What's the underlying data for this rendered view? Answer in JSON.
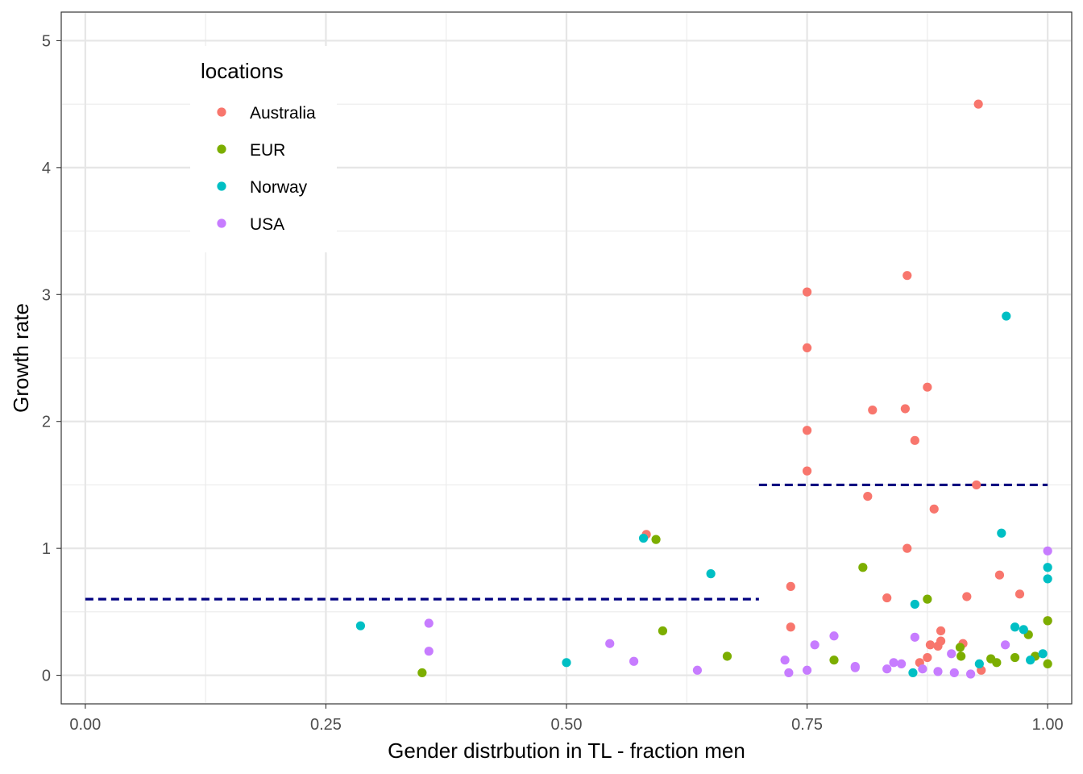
{
  "chart_data": {
    "type": "scatter",
    "xlabel": "Gender distrbution in TL - fraction men",
    "ylabel": "Growth rate",
    "xlim": [
      -0.025,
      1.025
    ],
    "ylim": [
      -0.225,
      5.225
    ],
    "xticks": [
      0.0,
      0.25,
      0.5,
      0.75,
      1.0
    ],
    "xtick_labels": [
      "0.00",
      "0.25",
      "0.50",
      "0.75",
      "1.00"
    ],
    "yticks": [
      0,
      1,
      2,
      3,
      4,
      5
    ],
    "ytick_labels": [
      "0",
      "1",
      "2",
      "3",
      "4",
      "5"
    ],
    "grid": true,
    "legend": {
      "title": "locations",
      "placement": "top-left"
    },
    "reference_lines": [
      {
        "x": [
          0.0,
          0.7
        ],
        "y": 0.6,
        "style": "dashed",
        "color": "#000080"
      },
      {
        "x": [
          0.7,
          1.0
        ],
        "y": 1.5,
        "style": "dashed",
        "color": "#000080"
      }
    ],
    "series": [
      {
        "name": "Australia",
        "color": "#F8766D",
        "points": [
          [
            0.928,
            4.5
          ],
          [
            0.75,
            3.02
          ],
          [
            0.854,
            3.15
          ],
          [
            0.75,
            2.58
          ],
          [
            0.875,
            2.27
          ],
          [
            0.818,
            2.09
          ],
          [
            0.852,
            2.1
          ],
          [
            0.75,
            1.93
          ],
          [
            0.862,
            1.85
          ],
          [
            0.75,
            1.61
          ],
          [
            0.926,
            1.5
          ],
          [
            0.813,
            1.41
          ],
          [
            0.882,
            1.31
          ],
          [
            0.583,
            1.11
          ],
          [
            0.854,
            1.0
          ],
          [
            0.95,
            0.79
          ],
          [
            0.733,
            0.7
          ],
          [
            0.971,
            0.64
          ],
          [
            0.833,
            0.61
          ],
          [
            0.916,
            0.62
          ],
          [
            0.733,
            0.38
          ],
          [
            0.889,
            0.35
          ],
          [
            0.878,
            0.24
          ],
          [
            0.889,
            0.27
          ],
          [
            0.886,
            0.23
          ],
          [
            0.912,
            0.25
          ],
          [
            0.875,
            0.14
          ],
          [
            0.867,
            0.1
          ],
          [
            0.931,
            0.04
          ],
          [
            1.0,
            0.43
          ]
        ]
      },
      {
        "name": "EUR",
        "color": "#7CAE00",
        "points": [
          [
            0.593,
            1.07
          ],
          [
            0.808,
            0.85
          ],
          [
            0.875,
            0.6
          ],
          [
            0.6,
            0.35
          ],
          [
            0.35,
            0.02
          ],
          [
            0.667,
            0.15
          ],
          [
            0.778,
            0.12
          ],
          [
            0.909,
            0.22
          ],
          [
            0.91,
            0.15
          ],
          [
            0.941,
            0.13
          ],
          [
            0.947,
            0.1
          ],
          [
            0.966,
            0.14
          ],
          [
            0.98,
            0.32
          ],
          [
            0.987,
            0.15
          ],
          [
            1.0,
            0.43
          ],
          [
            1.0,
            0.09
          ]
        ]
      },
      {
        "name": "Norway",
        "color": "#00BFC4",
        "points": [
          [
            0.957,
            2.83
          ],
          [
            0.952,
            1.12
          ],
          [
            0.58,
            1.08
          ],
          [
            0.65,
            0.8
          ],
          [
            1.0,
            0.85
          ],
          [
            1.0,
            0.76
          ],
          [
            0.862,
            0.56
          ],
          [
            0.286,
            0.39
          ],
          [
            0.966,
            0.38
          ],
          [
            0.975,
            0.36
          ],
          [
            0.5,
            0.1
          ],
          [
            0.929,
            0.09
          ],
          [
            0.86,
            0.02
          ],
          [
            0.982,
            0.12
          ],
          [
            0.995,
            0.17
          ]
        ]
      },
      {
        "name": "USA",
        "color": "#C77CFF",
        "points": [
          [
            1.0,
            0.98
          ],
          [
            0.357,
            0.41
          ],
          [
            0.357,
            0.19
          ],
          [
            0.545,
            0.25
          ],
          [
            0.57,
            0.11
          ],
          [
            0.636,
            0.04
          ],
          [
            0.727,
            0.12
          ],
          [
            0.731,
            0.02
          ],
          [
            0.75,
            0.04
          ],
          [
            0.758,
            0.24
          ],
          [
            0.778,
            0.31
          ],
          [
            0.8,
            0.07
          ],
          [
            0.8,
            0.06
          ],
          [
            0.833,
            0.05
          ],
          [
            0.84,
            0.1
          ],
          [
            0.848,
            0.09
          ],
          [
            0.862,
            0.3
          ],
          [
            0.87,
            0.05
          ],
          [
            0.886,
            0.03
          ],
          [
            0.9,
            0.17
          ],
          [
            0.903,
            0.02
          ],
          [
            0.92,
            0.01
          ],
          [
            0.956,
            0.24
          ]
        ]
      }
    ]
  }
}
